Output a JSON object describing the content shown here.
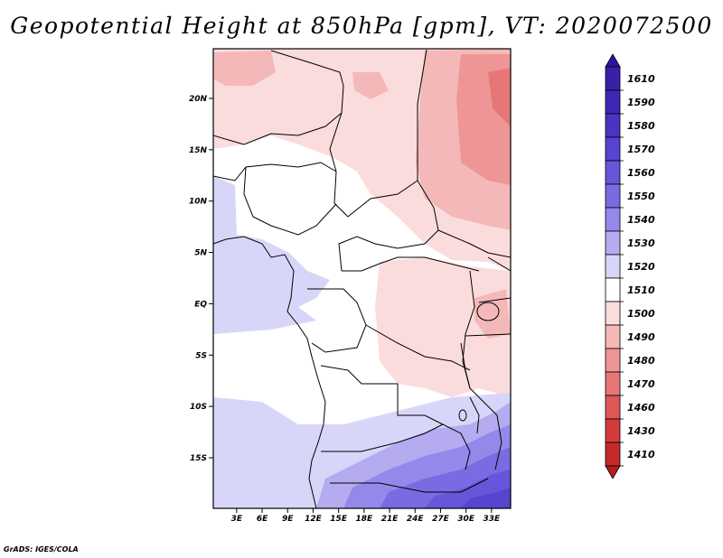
{
  "title": "Geopotential Height at 850hPa [gpm], VT: 2020072500",
  "credit": "GrADS: IGES/COLA",
  "map": {
    "lat_labels": [
      "20N",
      "15N",
      "10N",
      "5N",
      "EQ",
      "5S",
      "10S",
      "15S"
    ],
    "lon_labels": [
      "3E",
      "6E",
      "9E",
      "12E",
      "15E",
      "18E",
      "21E",
      "24E",
      "27E",
      "30E",
      "33E"
    ],
    "lat_values": [
      20,
      15,
      10,
      5,
      0,
      -5,
      -10,
      -15
    ],
    "lon_values": [
      3,
      6,
      9,
      12,
      15,
      18,
      21,
      24,
      27,
      30,
      33
    ]
  },
  "colorbar": {
    "levels": [
      {
        "label": "1610",
        "color": "#3a1fa8"
      },
      {
        "label": "1590",
        "color": "#3f27b5"
      },
      {
        "label": "1580",
        "color": "#4a34c2"
      },
      {
        "label": "1570",
        "color": "#5744cf"
      },
      {
        "label": "1560",
        "color": "#6656d9"
      },
      {
        "label": "1550",
        "color": "#7a6be2"
      },
      {
        "label": "1540",
        "color": "#9488ea"
      },
      {
        "label": "1530",
        "color": "#b4abf0"
      },
      {
        "label": "1520",
        "color": "#d8d6f8"
      },
      {
        "label": "1510",
        "color": "#ffffff"
      },
      {
        "label": "1500",
        "color": "#fbdcdc"
      },
      {
        "label": "1490",
        "color": "#f5b8b8"
      },
      {
        "label": "1480",
        "color": "#ee9696"
      },
      {
        "label": "1470",
        "color": "#e77777"
      },
      {
        "label": "1460",
        "color": "#df5757"
      },
      {
        "label": "1430",
        "color": "#d43c3c"
      },
      {
        "label": "1410",
        "color": "#c52a2a"
      }
    ],
    "top_triangle_color": "#2a17a0",
    "bottom_triangle_color": "#b71c1c"
  }
}
